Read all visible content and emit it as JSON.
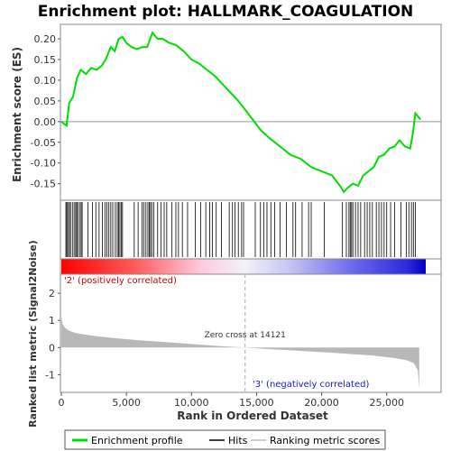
{
  "chart_data": {
    "type": "line",
    "title": "Enrichment plot: HALLMARK_COAGULATION",
    "es_panel": {
      "ylabel": "Enrichment score (ES)",
      "ylim": [
        -0.19,
        0.235
      ],
      "yticks": [
        -0.15,
        -0.1,
        -0.05,
        0.0,
        0.05,
        0.1,
        0.15,
        0.2
      ],
      "ytick_labels": [
        "-0.15",
        "-0.10",
        "-0.05",
        "0.00",
        "0.05",
        "0.10",
        "0.15",
        "0.20"
      ],
      "series": [
        {
          "name": "Enrichment profile",
          "color": "#00dd00",
          "x": [
            0,
            400,
            600,
            900,
            1200,
            1500,
            1900,
            2300,
            2700,
            3100,
            3400,
            3800,
            4100,
            4400,
            4700,
            5000,
            5400,
            5800,
            6200,
            6600,
            7000,
            7400,
            7800,
            8300,
            8800,
            9400,
            10000,
            10600,
            11200,
            11800,
            12400,
            13000,
            13600,
            14100,
            14700,
            15300,
            16000,
            16800,
            17600,
            18400,
            19200,
            20000,
            20800,
            21400,
            21700,
            22000,
            22400,
            22800,
            23200,
            23600,
            24000,
            24400,
            24800,
            25200,
            25600,
            26000,
            26400,
            26800,
            27000,
            27200,
            27600
          ],
          "y": [
            0.0,
            -0.01,
            0.045,
            0.06,
            0.105,
            0.125,
            0.115,
            0.13,
            0.125,
            0.135,
            0.15,
            0.18,
            0.17,
            0.2,
            0.205,
            0.19,
            0.18,
            0.175,
            0.18,
            0.18,
            0.215,
            0.2,
            0.2,
            0.19,
            0.185,
            0.17,
            0.15,
            0.14,
            0.125,
            0.11,
            0.09,
            0.07,
            0.05,
            0.03,
            0.005,
            -0.02,
            -0.04,
            -0.06,
            -0.08,
            -0.09,
            -0.11,
            -0.12,
            -0.13,
            -0.155,
            -0.17,
            -0.16,
            -0.15,
            -0.155,
            -0.13,
            -0.12,
            -0.11,
            -0.085,
            -0.08,
            -0.065,
            -0.06,
            -0.045,
            -0.06,
            -0.065,
            -0.03,
            0.02,
            0.005
          ]
        }
      ]
    },
    "hits_panel": {
      "hits": [
        350,
        420,
        500,
        620,
        700,
        850,
        980,
        1100,
        1180,
        1260,
        1400,
        1520,
        1600,
        2050,
        2400,
        2650,
        2900,
        3150,
        3350,
        3500,
        3650,
        3800,
        3950,
        4150,
        4300,
        4400,
        4500,
        4600,
        4700,
        5600,
        5900,
        6200,
        6350,
        6500,
        6650,
        6750,
        6850,
        6950,
        7100,
        7400,
        7650,
        7900,
        8100,
        8500,
        8800,
        9000,
        9300,
        9700,
        10300,
        10700,
        11100,
        11400,
        11600,
        11900,
        12300,
        12900,
        13150,
        13350,
        13600,
        13850,
        14000,
        14900,
        15300,
        15550,
        15800,
        16100,
        16400,
        16800,
        17300,
        17800,
        18000,
        18500,
        19000,
        19200,
        20200,
        21600,
        21900,
        22100,
        22200,
        22300,
        22400,
        22600,
        22800,
        23000,
        23300,
        23500,
        23700,
        23900,
        24200,
        24400,
        24600,
        24800,
        25000,
        25300,
        25600,
        26100,
        26500,
        26700,
        26900,
        27050,
        27200
      ]
    },
    "ranked_panel": {
      "ylabel": "Ranked list metric (Signal2Noise)",
      "xlabel": "Rank in Ordered Dataset",
      "xlim": [
        0,
        28000
      ],
      "ylim": [
        -1.65,
        2.7
      ],
      "xticks": [
        0,
        5000,
        10000,
        15000,
        20000,
        25000
      ],
      "xtick_labels": [
        "0",
        "5,000",
        "10,000",
        "15,000",
        "20,000",
        "25,000"
      ],
      "yticks": [
        -1,
        0,
        1,
        2
      ],
      "ytick_labels": [
        "-1",
        "0",
        "1",
        "2"
      ],
      "metric_x": [
        0,
        100,
        300,
        600,
        1000,
        1500,
        2500,
        4000,
        6000,
        8000,
        10000,
        12000,
        14121,
        16000,
        18000,
        20000,
        22000,
        24000,
        25500,
        26500,
        27100,
        27400,
        27500
      ],
      "metric_y": [
        1.15,
        0.85,
        0.72,
        0.62,
        0.55,
        0.5,
        0.43,
        0.35,
        0.27,
        0.2,
        0.13,
        0.06,
        0.0,
        -0.06,
        -0.11,
        -0.17,
        -0.23,
        -0.3,
        -0.38,
        -0.46,
        -0.58,
        -0.85,
        -1.52
      ],
      "zero_cross_label": "Zero cross at 14121",
      "zero_cross_x": 14121,
      "positive_label": "'2' (positively correlated)",
      "negative_label": "'3' (negatively correlated)"
    },
    "legend": {
      "placement": "bottom",
      "items": [
        {
          "label": "Enrichment profile",
          "color": "#00dd00"
        },
        {
          "label": "Hits",
          "color": "#000000"
        },
        {
          "label": "Ranking metric scores",
          "color": "#c0c0c0"
        }
      ]
    },
    "colors": {
      "positive": "#ff0000",
      "negative": "#0000ff",
      "metric_fill": "#b8b8b8"
    }
  }
}
